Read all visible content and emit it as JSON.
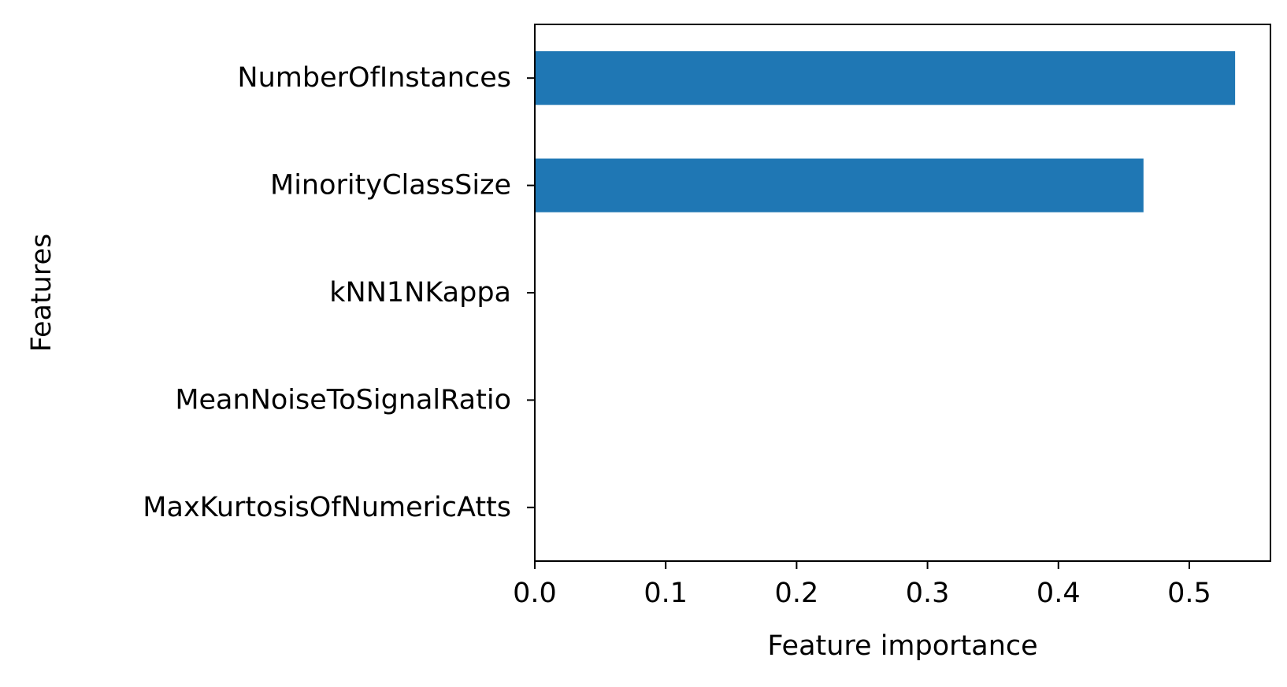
{
  "chart_data": {
    "type": "bar",
    "orientation": "horizontal",
    "title": "",
    "xlabel": "Feature importance",
    "ylabel": "Features",
    "categories": [
      "NumberOfInstances",
      "MinorityClassSize",
      "kNN1NKappa",
      "MeanNoiseToSignalRatio",
      "MaxKurtosisOfNumericAtts"
    ],
    "values": [
      0.535,
      0.465,
      0.0,
      0.0,
      0.0
    ],
    "xlim": [
      0.0,
      0.562
    ],
    "xticks": [
      "0.0",
      "0.1",
      "0.2",
      "0.3",
      "0.4",
      "0.5"
    ],
    "bar_color": "#1f77b4",
    "grid": false,
    "legend": false
  }
}
